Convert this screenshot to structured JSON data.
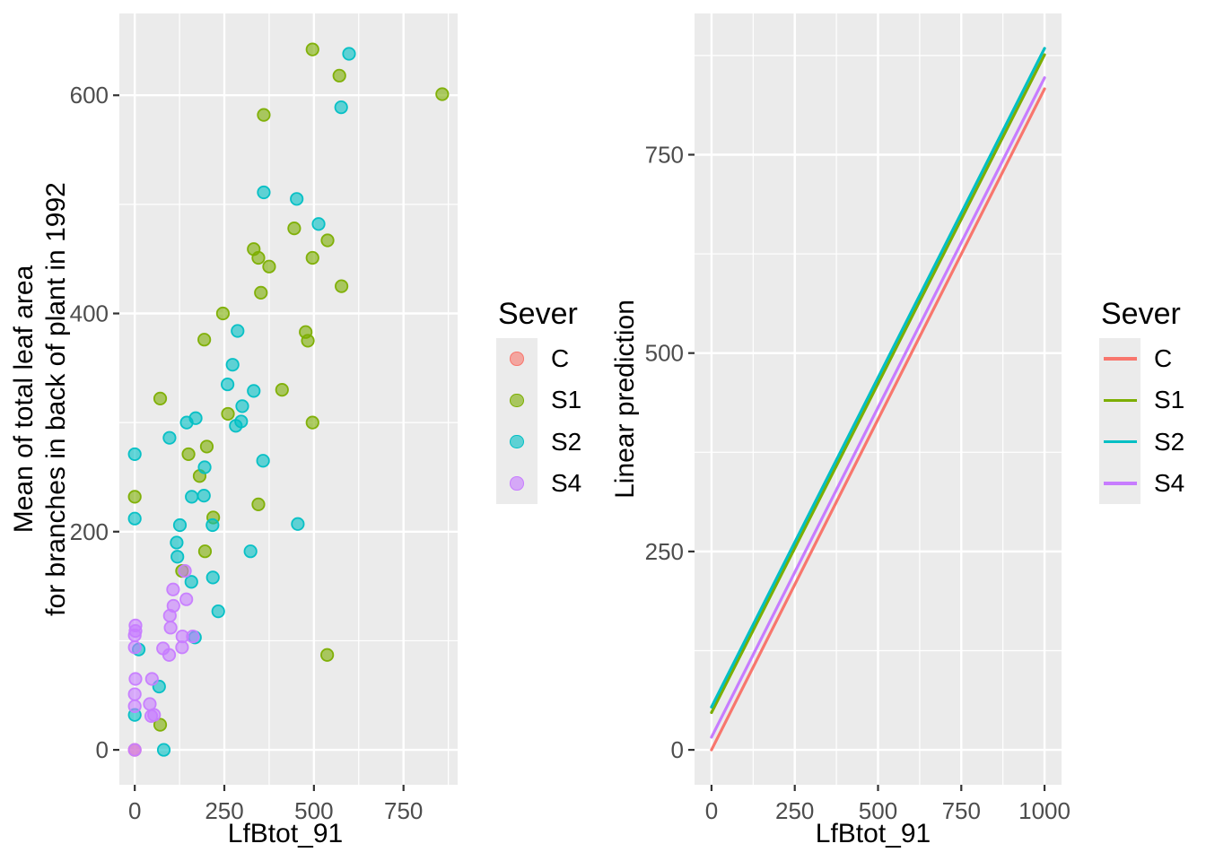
{
  "styles": {
    "panel_bg": "#EBEBEB",
    "grid_color": "#FFFFFF",
    "tick_mark_color": "#333333",
    "tick_label_color": "#4D4D4D",
    "axis_title_color": "#000000",
    "point_alpha": 0.6
  },
  "legend": {
    "title": "Sever",
    "entries": [
      {
        "label": "C",
        "color": "#F8766D"
      },
      {
        "label": "S1",
        "color": "#7CAE00"
      },
      {
        "label": "S2",
        "color": "#00BFC4"
      },
      {
        "label": "S4",
        "color": "#C77CFF"
      }
    ]
  },
  "chart_data": [
    {
      "type": "scatter",
      "title": "",
      "xlabel": "LfBtot_91",
      "ylabel": "Mean of total leaf area\nfor branches in back of plant in 1992",
      "ylabel_lines": [
        "Mean of total leaf area",
        "for branches in back of plant in 1992"
      ],
      "xlim": [
        -43,
        901
      ],
      "ylim": [
        -32,
        675
      ],
      "xticks": [
        0,
        250,
        500,
        750
      ],
      "yticks": [
        0,
        200,
        400,
        600
      ],
      "grid": "white major and minor gridlines on gray panel",
      "legend_position": "right",
      "series": [
        {
          "name": "C",
          "color": "#F8766D",
          "points": [
            [
              0,
              0
            ]
          ]
        },
        {
          "name": "S1",
          "color": "#7CAE00",
          "points": [
            [
              496,
              642
            ],
            [
              571,
              618
            ],
            [
              858,
              601
            ],
            [
              360,
              582
            ],
            [
              445,
              478
            ],
            [
              538,
              467
            ],
            [
              332,
              459
            ],
            [
              345,
              451
            ],
            [
              496,
              451
            ],
            [
              375,
              443
            ],
            [
              577,
              425
            ],
            [
              352,
              419
            ],
            [
              246,
              400
            ],
            [
              477,
              383
            ],
            [
              483,
              375
            ],
            [
              194,
              376
            ],
            [
              411,
              330
            ],
            [
              71,
              322
            ],
            [
              260,
              308
            ],
            [
              496,
              300
            ],
            [
              201,
              278
            ],
            [
              150,
              271
            ],
            [
              181,
              251
            ],
            [
              0,
              232
            ],
            [
              345,
              225
            ],
            [
              219,
              213
            ],
            [
              196,
              182
            ],
            [
              132,
              164
            ],
            [
              537,
              87
            ],
            [
              71,
              23
            ]
          ]
        },
        {
          "name": "S2",
          "color": "#00BFC4",
          "points": [
            [
              598,
              638
            ],
            [
              576,
              589
            ],
            [
              360,
              511
            ],
            [
              452,
              505
            ],
            [
              513,
              482
            ],
            [
              287,
              384
            ],
            [
              273,
              353
            ],
            [
              259,
              335
            ],
            [
              332,
              329
            ],
            [
              300,
              315
            ],
            [
              170,
              304
            ],
            [
              145,
              300
            ],
            [
              297,
              301
            ],
            [
              282,
              297
            ],
            [
              97,
              286
            ],
            [
              0,
              271
            ],
            [
              358,
              265
            ],
            [
              195,
              259
            ],
            [
              159,
              232
            ],
            [
              193,
              233
            ],
            [
              0,
              212
            ],
            [
              126,
              206
            ],
            [
              217,
              206
            ],
            [
              455,
              207
            ],
            [
              117,
              190
            ],
            [
              119,
              177
            ],
            [
              323,
              182
            ],
            [
              158,
              154
            ],
            [
              218,
              158
            ],
            [
              233,
              127
            ],
            [
              168,
              103
            ],
            [
              11,
              92
            ],
            [
              68,
              58
            ],
            [
              0,
              32
            ],
            [
              81,
              0
            ]
          ]
        },
        {
          "name": "S4",
          "color": "#C77CFF",
          "points": [
            [
              140,
              164
            ],
            [
              107,
              147
            ],
            [
              144,
              138
            ],
            [
              108,
              132
            ],
            [
              98,
              123
            ],
            [
              100,
              112
            ],
            [
              2,
              114
            ],
            [
              2,
              109
            ],
            [
              0,
              105
            ],
            [
              133,
              104
            ],
            [
              162,
              104
            ],
            [
              0,
              94
            ],
            [
              79,
              93
            ],
            [
              132,
              94
            ],
            [
              96,
              87
            ],
            [
              2,
              65
            ],
            [
              48,
              65
            ],
            [
              0,
              51
            ],
            [
              0,
              40
            ],
            [
              42,
              42
            ],
            [
              54,
              32
            ],
            [
              46,
              31
            ],
            [
              0,
              0
            ]
          ]
        }
      ]
    },
    {
      "type": "line",
      "title": "",
      "xlabel": "LfBtot_91",
      "ylabel": "Linear prediction",
      "ylabel_lines": [
        "Linear prediction"
      ],
      "xlim": [
        -51,
        1051
      ],
      "ylim": [
        -44,
        928
      ],
      "xticks": [
        0,
        250,
        500,
        750,
        1000
      ],
      "yticks": [
        0,
        250,
        500,
        750
      ],
      "grid": "white major and minor gridlines on gray panel",
      "legend_position": "right",
      "series": [
        {
          "name": "C",
          "color": "#F8766D",
          "points": [
            [
              0,
              0
            ],
            [
              1000,
              833
            ]
          ]
        },
        {
          "name": "S1",
          "color": "#7CAE00",
          "points": [
            [
              0,
              47
            ],
            [
              1000,
              876
            ]
          ]
        },
        {
          "name": "S4",
          "color": "#C77CFF",
          "points": [
            [
              0,
              16
            ],
            [
              1000,
              847
            ]
          ]
        },
        {
          "name": "S2",
          "color": "#00BFC4",
          "points": [
            [
              0,
              54
            ],
            [
              1000,
              884
            ]
          ]
        }
      ]
    }
  ]
}
